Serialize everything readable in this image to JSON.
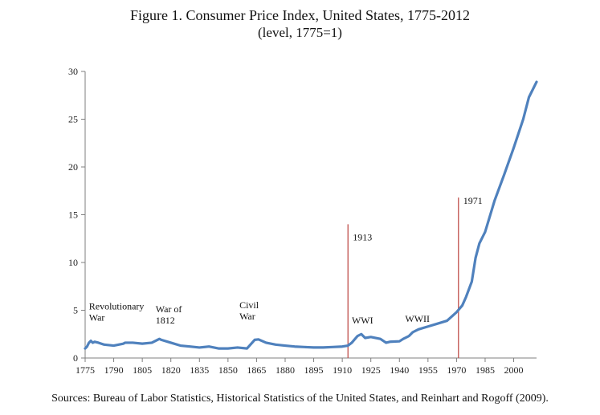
{
  "chart_data": {
    "type": "line",
    "title": "Figure 1. Consumer Price Index, United States, 1775-2012",
    "subtitle": "(level, 1775=1)",
    "xlim": [
      1775,
      2012
    ],
    "ylim": [
      0,
      30
    ],
    "x_ticks": [
      1775,
      1790,
      1805,
      1820,
      1835,
      1850,
      1865,
      1880,
      1895,
      1910,
      1925,
      1940,
      1955,
      1970,
      1985,
      2000
    ],
    "y_ticks": [
      0,
      5,
      10,
      15,
      20,
      25,
      30
    ],
    "grid": false,
    "line_color": "#4f81bd",
    "marker_color": "#c0504d",
    "series": [
      {
        "x": [
          1775,
          1776,
          1777,
          1778,
          1779,
          1780,
          1782,
          1785,
          1790,
          1795,
          1796,
          1800,
          1805,
          1810,
          1814,
          1815,
          1820,
          1825,
          1830,
          1835,
          1840,
          1845,
          1850,
          1855,
          1860,
          1864,
          1866,
          1870,
          1875,
          1880,
          1885,
          1890,
          1895,
          1900,
          1905,
          1910,
          1913,
          1915,
          1918,
          1920,
          1922,
          1925,
          1930,
          1933,
          1935,
          1940,
          1942,
          1945,
          1947,
          1950,
          1955,
          1960,
          1965,
          1970,
          1973,
          1975,
          1978,
          1980,
          1982,
          1985,
          1990,
          1995,
          2000,
          2005,
          2008,
          2010,
          2012
        ],
        "y": [
          1.0,
          1.2,
          1.6,
          1.8,
          1.6,
          1.7,
          1.6,
          1.4,
          1.3,
          1.5,
          1.6,
          1.6,
          1.5,
          1.6,
          2.0,
          1.9,
          1.6,
          1.3,
          1.2,
          1.1,
          1.2,
          1.0,
          1.0,
          1.1,
          1.0,
          1.9,
          1.95,
          1.6,
          1.4,
          1.3,
          1.2,
          1.15,
          1.1,
          1.1,
          1.15,
          1.2,
          1.3,
          1.6,
          2.3,
          2.5,
          2.1,
          2.2,
          2.0,
          1.6,
          1.7,
          1.75,
          2.0,
          2.3,
          2.7,
          3.0,
          3.3,
          3.6,
          3.9,
          4.8,
          5.5,
          6.4,
          8.0,
          10.5,
          12.0,
          13.2,
          16.5,
          19.2,
          22.0,
          25.0,
          27.3,
          28.1,
          28.9
        ]
      }
    ],
    "markers": [
      {
        "x": 1913,
        "y": 14,
        "label": "1913"
      },
      {
        "x": 1971,
        "y": 16.8,
        "label": "1971"
      }
    ],
    "annotations": [
      {
        "lines": [
          "Revolutionary",
          "War"
        ],
        "x": 1777,
        "y": 5.1
      },
      {
        "lines": [
          "War of",
          "1812"
        ],
        "x": 1812,
        "y": 4.8
      },
      {
        "lines": [
          "Civil",
          "War"
        ],
        "x": 1856,
        "y": 5.2
      },
      {
        "lines": [
          "WWI"
        ],
        "x": 1915,
        "y": 3.6
      },
      {
        "lines": [
          "WWII"
        ],
        "x": 1943,
        "y": 3.8
      }
    ]
  },
  "source": "Sources: Bureau of Labor Statistics, Historical Statistics of the United States, and Reinhart and Rogoff (2009)."
}
